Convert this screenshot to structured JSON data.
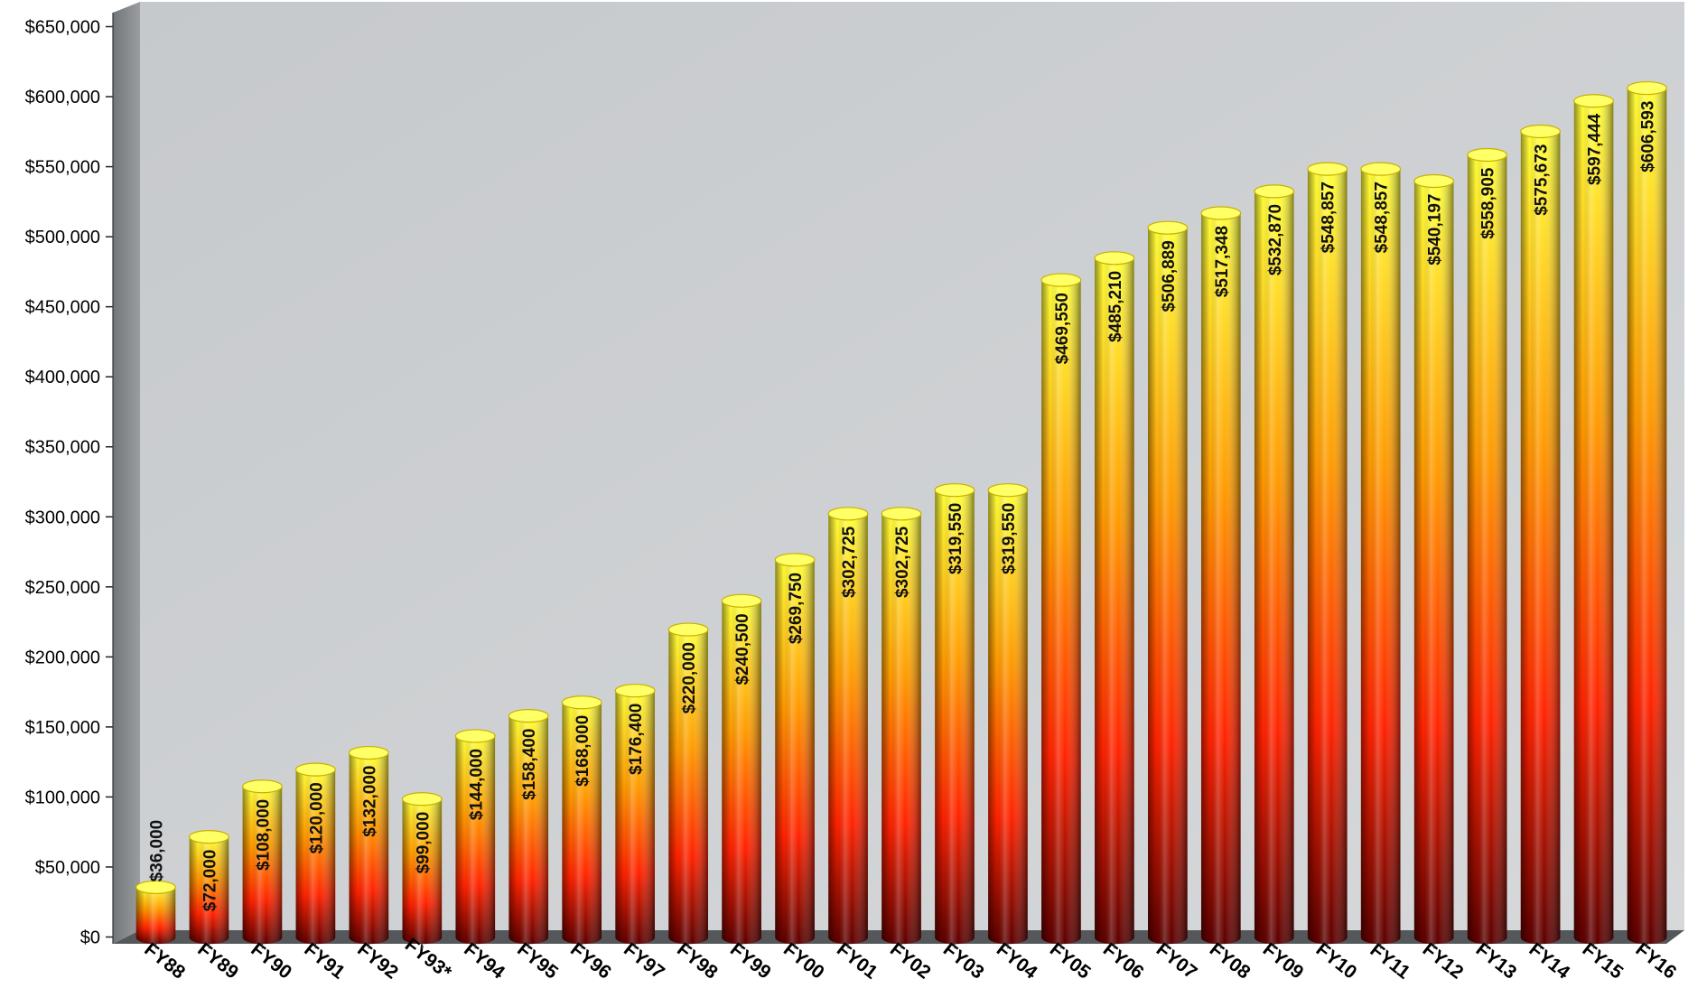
{
  "chart_data": {
    "type": "bar",
    "title": "",
    "xlabel": "",
    "ylabel": "",
    "ylim": [
      0,
      650000
    ],
    "y_tick_step": 50000,
    "y_tick_labels": [
      "$0",
      "$50,000",
      "$100,000",
      "$150,000",
      "$200,000",
      "$250,000",
      "$300,000",
      "$350,000",
      "$400,000",
      "$450,000",
      "$500,000",
      "$550,000",
      "$600,000",
      "$650,000"
    ],
    "grid": false,
    "legend": "none",
    "style": "3d-cylinder",
    "categories": [
      "FY88",
      "FY89",
      "FY90",
      "FY91",
      "FY92",
      "FY93*",
      "FY94",
      "FY95",
      "FY96",
      "FY97",
      "FY98",
      "FY99",
      "FY00",
      "FY01",
      "FY02",
      "FY03",
      "FY04",
      "FY05",
      "FY06",
      "FY07",
      "FY08",
      "FY09",
      "FY10",
      "FY11",
      "FY12",
      "FY13",
      "FY14",
      "FY15",
      "FY16"
    ],
    "values": [
      36000,
      72000,
      108000,
      120000,
      132000,
      99000,
      144000,
      158400,
      168000,
      176400,
      220000,
      240500,
      269750,
      302725,
      302725,
      319550,
      319550,
      469550,
      485210,
      506889,
      517348,
      532870,
      548857,
      548857,
      540197,
      558905,
      575673,
      597444,
      606593
    ],
    "data_labels": [
      "$36,000",
      "$72,000",
      "$108,000",
      "$120,000",
      "$132,000",
      "$99,000",
      "$144,000",
      "$158,400",
      "$168,000",
      "$176,400",
      "$220,000",
      "$240,500",
      "$269,750",
      "$302,725",
      "$302,725",
      "$319,550",
      "$319,550",
      "$469,550",
      "$485,210",
      "$506,889",
      "$517,348",
      "$532,870",
      "$548,857",
      "$548,857",
      "$540,197",
      "$558,905",
      "$575,673",
      "$597,444",
      "$606,593"
    ]
  },
  "colors": {
    "wall_back": "#cdd0d3",
    "wall_side": "#7f8285",
    "floor": "#55585b",
    "bar_top": "#ffff3c",
    "bar_mid": "#ff9900",
    "bar_low": "#ff2a00",
    "bar_base": "#5a0000",
    "label_text": "#111111",
    "axis_text": "#000000"
  }
}
